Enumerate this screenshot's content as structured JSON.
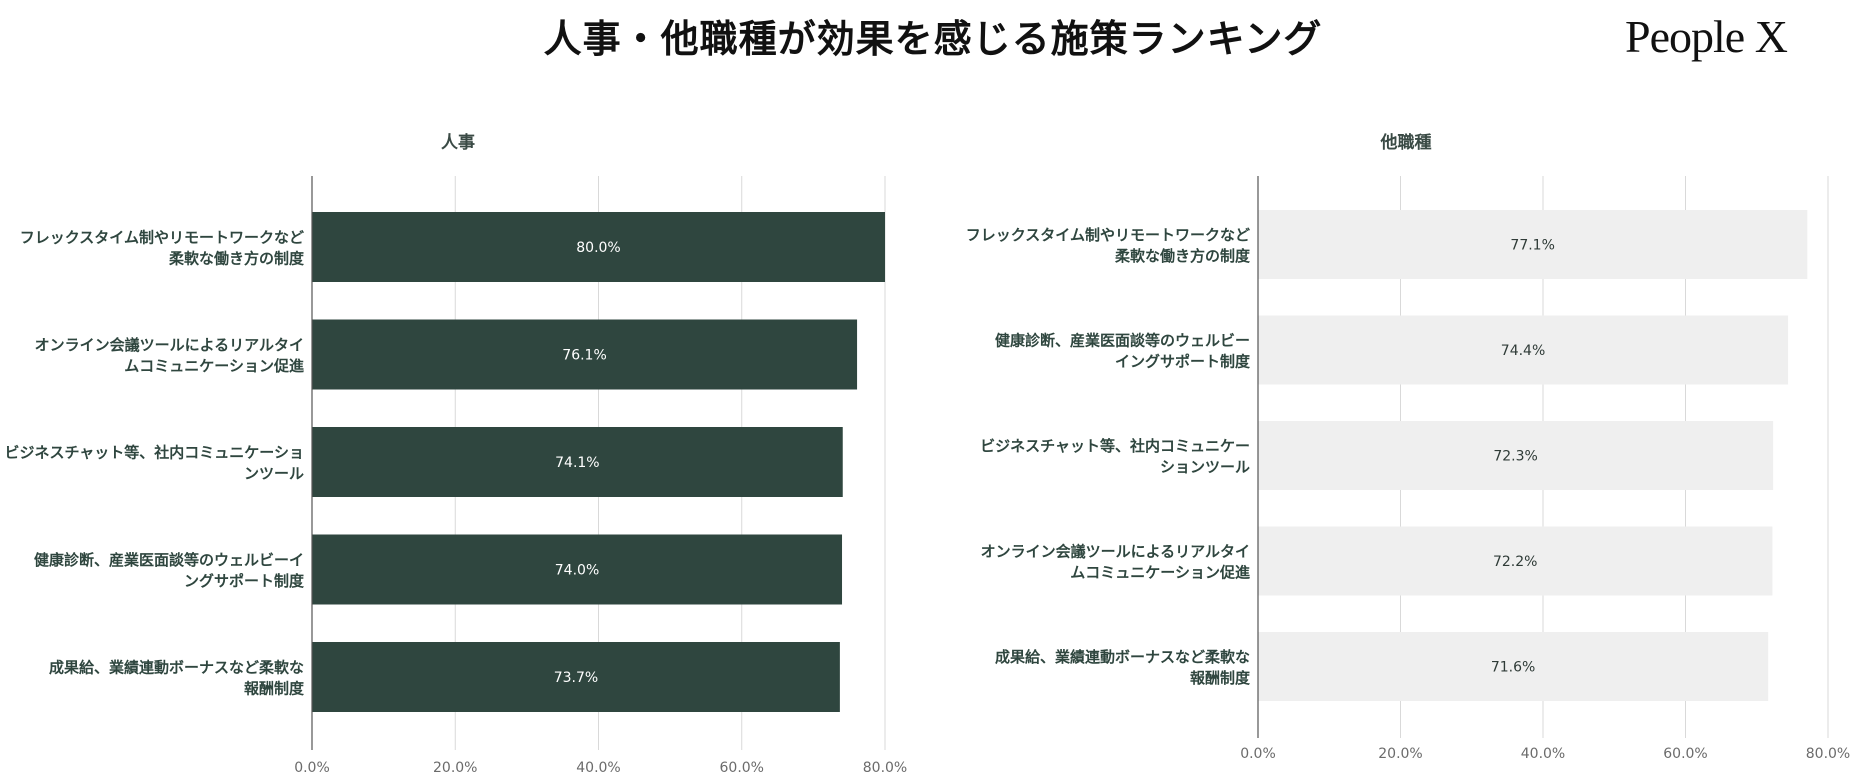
{
  "header": {
    "title": "人事・他職種が効果を感じる施策ランキング",
    "logo_text": "People X"
  },
  "chart_data": [
    {
      "type": "bar",
      "orientation": "horizontal",
      "title": "人事",
      "xlabel": "",
      "ylabel": "",
      "categories": [
        [
          "フレックスタイム制やリモートワークなど",
          "柔軟な働き方の制度"
        ],
        [
          "オンライン会議ツールによるリアルタイ",
          "ムコミュニケーション促進"
        ],
        [
          "ビジネスチャット等、社内コミュニケーショ",
          "ンツール"
        ],
        [
          "健康診断、産業医面談等のウェルビーイ",
          "ングサポート制度"
        ],
        [
          "成果給、業績連動ボーナスなど柔軟な",
          "報酬制度"
        ]
      ],
      "values": [
        80.0,
        76.1,
        74.1,
        74.0,
        73.7
      ],
      "value_labels": [
        "80.0%",
        "76.1%",
        "74.1%",
        "74.0%",
        "73.7%"
      ],
      "xlim": [
        0,
        80
      ],
      "x_ticks": [
        0,
        20,
        40,
        60,
        80
      ],
      "x_tick_labels": [
        "0.0%",
        "20.0%",
        "40.0%",
        "60.0%",
        "80.0%"
      ],
      "grid": true,
      "bar_color": "#2f463f",
      "label_color": "#ffffff",
      "category_color": "#2f463f"
    },
    {
      "type": "bar",
      "orientation": "horizontal",
      "title": "他職種",
      "xlabel": "",
      "ylabel": "",
      "categories": [
        [
          "フレックスタイム制やリモートワークなど",
          "柔軟な働き方の制度"
        ],
        [
          "健康診断、産業医面談等のウェルビー",
          "イングサポート制度"
        ],
        [
          "ビジネスチャット等、社内コミュニケー",
          "ションツール"
        ],
        [
          "オンライン会議ツールによるリアルタイ",
          "ムコミュニケーション促進"
        ],
        [
          "成果給、業績連動ボーナスなど柔軟な",
          "報酬制度"
        ]
      ],
      "values": [
        77.1,
        74.4,
        72.3,
        72.2,
        71.6
      ],
      "value_labels": [
        "77.1%",
        "74.4%",
        "72.3%",
        "72.2%",
        "71.6%"
      ],
      "xlim": [
        0,
        80
      ],
      "x_ticks": [
        0,
        20,
        40,
        60,
        80
      ],
      "x_tick_labels": [
        "0.0%",
        "20.0%",
        "40.0%",
        "60.0%",
        "80.0%"
      ],
      "grid": true,
      "bar_color": "#efefef",
      "label_color": "#2f3b37",
      "category_color": "#2f463f"
    }
  ]
}
